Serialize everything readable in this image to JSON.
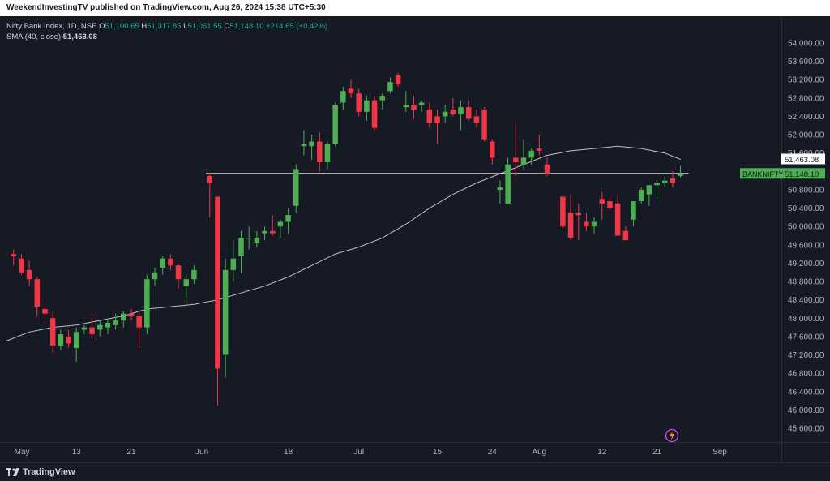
{
  "header": {
    "publisher_line": "WeekendInvestingTV published on TradingView.com, Aug 26, 2024 15:38 UTC+5:30"
  },
  "legend": {
    "symbol": "Nifty Bank Index, 1D, NSE",
    "o_label": "O",
    "o_value": "51,100.65",
    "h_label": "H",
    "h_value": "51,317.85",
    "l_label": "L",
    "l_value": "51,061.55",
    "c_label": "C",
    "c_value": "51,148.10",
    "change": "+214.65 (+0.42%)",
    "sma_label": "SMA (40, close)",
    "sma_value": "51,463.08"
  },
  "footer": {
    "brand": "TradingView"
  },
  "colors": {
    "up": "#4caf50",
    "down": "#f23645",
    "bg": "#161a25",
    "sma": "#d1d4dc",
    "hline": "#ffffff",
    "axis_text": "#b2b5be"
  },
  "chart_data": {
    "type": "candlestick",
    "yaxis": {
      "min": 45500,
      "max": 54200,
      "ticks": [
        "54,000.00",
        "53,600.00",
        "53,200.00",
        "52,800.00",
        "52,400.00",
        "52,000.00",
        "51,600.00",
        "51,200.00",
        "50,800.00",
        "50,400.00",
        "50,000.00",
        "49,600.00",
        "49,200.00",
        "48,800.00",
        "48,400.00",
        "48,000.00",
        "47,600.00",
        "47,200.00",
        "46,800.00",
        "46,400.00",
        "46,000.00",
        "45,600.00"
      ]
    },
    "xaxis": {
      "labels": [
        {
          "text": "May",
          "day": 0
        },
        {
          "text": "13",
          "day": 9
        },
        {
          "text": "21",
          "day": 16
        },
        {
          "text": "Jun",
          "day": 25
        },
        {
          "text": "18",
          "day": 36
        },
        {
          "text": "Jul",
          "day": 45
        },
        {
          "text": "15",
          "day": 55
        },
        {
          "text": "24",
          "day": 62
        },
        {
          "text": "Aug",
          "day": 68
        },
        {
          "text": "12",
          "day": 76
        },
        {
          "text": "21",
          "day": 83
        },
        {
          "text": "Sep",
          "day": 91
        }
      ]
    },
    "candles": [
      {
        "d": 1,
        "o": 49400,
        "h": 49500,
        "l": 49150,
        "c": 49350
      },
      {
        "d": 2,
        "o": 49300,
        "h": 49400,
        "l": 48950,
        "c": 49000
      },
      {
        "d": 3,
        "o": 49050,
        "h": 49250,
        "l": 48700,
        "c": 48850
      },
      {
        "d": 4,
        "o": 48850,
        "h": 48900,
        "l": 48050,
        "c": 48250
      },
      {
        "d": 5,
        "o": 48200,
        "h": 48300,
        "l": 47900,
        "c": 48100
      },
      {
        "d": 6,
        "o": 48000,
        "h": 48150,
        "l": 47250,
        "c": 47400
      },
      {
        "d": 7,
        "o": 47400,
        "h": 47750,
        "l": 47300,
        "c": 47650
      },
      {
        "d": 8,
        "o": 47600,
        "h": 47750,
        "l": 47350,
        "c": 47450
      },
      {
        "d": 9,
        "o": 47350,
        "h": 47800,
        "l": 47050,
        "c": 47700
      },
      {
        "d": 10,
        "o": 47750,
        "h": 47850,
        "l": 47650,
        "c": 47800
      },
      {
        "d": 11,
        "o": 47800,
        "h": 48100,
        "l": 47550,
        "c": 47650
      },
      {
        "d": 12,
        "o": 47750,
        "h": 47950,
        "l": 47600,
        "c": 47850
      },
      {
        "d": 13,
        "o": 47800,
        "h": 48000,
        "l": 47650,
        "c": 47900
      },
      {
        "d": 14,
        "o": 47850,
        "h": 48100,
        "l": 47750,
        "c": 47950
      },
      {
        "d": 15,
        "o": 47950,
        "h": 48150,
        "l": 47800,
        "c": 48100
      },
      {
        "d": 16,
        "o": 48100,
        "h": 48200,
        "l": 47950,
        "c": 48050
      },
      {
        "d": 17,
        "o": 48050,
        "h": 48150,
        "l": 47350,
        "c": 47800
      },
      {
        "d": 18,
        "o": 47800,
        "h": 48950,
        "l": 47650,
        "c": 48850
      },
      {
        "d": 19,
        "o": 48850,
        "h": 49100,
        "l": 48700,
        "c": 49000
      },
      {
        "d": 20,
        "o": 49100,
        "h": 49350,
        "l": 48950,
        "c": 49300
      },
      {
        "d": 21,
        "o": 49300,
        "h": 49400,
        "l": 49050,
        "c": 49150
      },
      {
        "d": 22,
        "o": 49150,
        "h": 49200,
        "l": 48650,
        "c": 48850
      },
      {
        "d": 23,
        "o": 48700,
        "h": 48950,
        "l": 48350,
        "c": 48850
      },
      {
        "d": 24,
        "o": 48850,
        "h": 49150,
        "l": 48750,
        "c": 49050
      },
      {
        "d": 26,
        "o": 51100,
        "h": 51150,
        "l": 50200,
        "c": 50950
      },
      {
        "d": 27,
        "o": 50650,
        "h": 50650,
        "l": 46100,
        "c": 46900
      },
      {
        "d": 28,
        "o": 47200,
        "h": 49300,
        "l": 46700,
        "c": 49050
      },
      {
        "d": 29,
        "o": 49050,
        "h": 49700,
        "l": 48800,
        "c": 49300
      },
      {
        "d": 30,
        "o": 49350,
        "h": 49900,
        "l": 49000,
        "c": 49750
      },
      {
        "d": 31,
        "o": 49750,
        "h": 50000,
        "l": 49500,
        "c": 49750
      },
      {
        "d": 32,
        "o": 49650,
        "h": 49900,
        "l": 49550,
        "c": 49750
      },
      {
        "d": 33,
        "o": 49850,
        "h": 50000,
        "l": 49700,
        "c": 49900
      },
      {
        "d": 34,
        "o": 49900,
        "h": 50250,
        "l": 49800,
        "c": 49850
      },
      {
        "d": 35,
        "o": 50000,
        "h": 50150,
        "l": 49750,
        "c": 50100
      },
      {
        "d": 36,
        "o": 50100,
        "h": 50400,
        "l": 49850,
        "c": 50250
      },
      {
        "d": 37,
        "o": 50450,
        "h": 51350,
        "l": 50300,
        "c": 51250
      },
      {
        "d": 38,
        "o": 51750,
        "h": 52100,
        "l": 51550,
        "c": 51800
      },
      {
        "d": 39,
        "o": 51750,
        "h": 52000,
        "l": 51450,
        "c": 51850
      },
      {
        "d": 40,
        "o": 51850,
        "h": 52050,
        "l": 51200,
        "c": 51400
      },
      {
        "d": 41,
        "o": 51400,
        "h": 51850,
        "l": 51250,
        "c": 51800
      },
      {
        "d": 42,
        "o": 51800,
        "h": 52700,
        "l": 51750,
        "c": 52650
      },
      {
        "d": 43,
        "o": 52700,
        "h": 53050,
        "l": 52550,
        "c": 52950
      },
      {
        "d": 44,
        "o": 53000,
        "h": 53200,
        "l": 52800,
        "c": 52900
      },
      {
        "d": 45,
        "o": 52900,
        "h": 53000,
        "l": 52400,
        "c": 52500
      },
      {
        "d": 46,
        "o": 52500,
        "h": 52850,
        "l": 52300,
        "c": 52750
      },
      {
        "d": 47,
        "o": 52750,
        "h": 52850,
        "l": 52100,
        "c": 52150
      },
      {
        "d": 48,
        "o": 52750,
        "h": 52900,
        "l": 52550,
        "c": 52850
      },
      {
        "d": 49,
        "o": 52950,
        "h": 53250,
        "l": 52900,
        "c": 53150
      },
      {
        "d": 50,
        "o": 53300,
        "h": 53350,
        "l": 53050,
        "c": 53100
      },
      {
        "d": 51,
        "o": 52600,
        "h": 52950,
        "l": 52500,
        "c": 52650
      },
      {
        "d": 52,
        "o": 52650,
        "h": 52850,
        "l": 52350,
        "c": 52550
      },
      {
        "d": 53,
        "o": 52650,
        "h": 52750,
        "l": 52500,
        "c": 52700
      },
      {
        "d": 54,
        "o": 52550,
        "h": 52700,
        "l": 52150,
        "c": 52250
      },
      {
        "d": 55,
        "o": 52400,
        "h": 52550,
        "l": 51800,
        "c": 52250
      },
      {
        "d": 56,
        "o": 52400,
        "h": 52650,
        "l": 52250,
        "c": 52500
      },
      {
        "d": 57,
        "o": 52550,
        "h": 52800,
        "l": 52400,
        "c": 52450
      },
      {
        "d": 58,
        "o": 52450,
        "h": 52750,
        "l": 52100,
        "c": 52600
      },
      {
        "d": 59,
        "o": 52600,
        "h": 52750,
        "l": 52300,
        "c": 52350
      },
      {
        "d": 60,
        "o": 52400,
        "h": 52550,
        "l": 52150,
        "c": 52250
      },
      {
        "d": 61,
        "o": 52550,
        "h": 52600,
        "l": 51850,
        "c": 51900
      },
      {
        "d": 62,
        "o": 51850,
        "h": 51900,
        "l": 51350,
        "c": 51500
      },
      {
        "d": 63,
        "o": 50800,
        "h": 51000,
        "l": 50500,
        "c": 50850
      },
      {
        "d": 64,
        "o": 50500,
        "h": 51500,
        "l": 50500,
        "c": 51350
      },
      {
        "d": 65,
        "o": 51500,
        "h": 52250,
        "l": 51100,
        "c": 51400
      },
      {
        "d": 66,
        "o": 51350,
        "h": 51900,
        "l": 51250,
        "c": 51500
      },
      {
        "d": 67,
        "o": 51500,
        "h": 51700,
        "l": 51350,
        "c": 51650
      },
      {
        "d": 68,
        "o": 51700,
        "h": 52000,
        "l": 51550,
        "c": 51650
      },
      {
        "d": 69,
        "o": 51350,
        "h": 51500,
        "l": 51100,
        "c": 51150
      },
      {
        "d": 71,
        "o": 50650,
        "h": 50700,
        "l": 49950,
        "c": 50000
      },
      {
        "d": 72,
        "o": 50300,
        "h": 50700,
        "l": 49700,
        "c": 49750
      },
      {
        "d": 73,
        "o": 50300,
        "h": 50500,
        "l": 49700,
        "c": 50250
      },
      {
        "d": 74,
        "o": 50100,
        "h": 50300,
        "l": 49900,
        "c": 50000
      },
      {
        "d": 75,
        "o": 50000,
        "h": 50200,
        "l": 49850,
        "c": 50100
      },
      {
        "d": 76,
        "o": 50600,
        "h": 50750,
        "l": 50150,
        "c": 50500
      },
      {
        "d": 77,
        "o": 50550,
        "h": 50650,
        "l": 50350,
        "c": 50400
      },
      {
        "d": 78,
        "o": 50500,
        "h": 50700,
        "l": 49800,
        "c": 49800
      },
      {
        "d": 79,
        "o": 49900,
        "h": 50000,
        "l": 49700,
        "c": 49700
      },
      {
        "d": 80,
        "o": 50150,
        "h": 50550,
        "l": 50000,
        "c": 50550
      },
      {
        "d": 81,
        "o": 50550,
        "h": 50850,
        "l": 50500,
        "c": 50800
      },
      {
        "d": 82,
        "o": 50700,
        "h": 50850,
        "l": 50450,
        "c": 50900
      },
      {
        "d": 83,
        "o": 50900,
        "h": 51000,
        "l": 50600,
        "c": 50950
      },
      {
        "d": 84,
        "o": 50950,
        "h": 51100,
        "l": 50850,
        "c": 51000
      },
      {
        "d": 85,
        "o": 51050,
        "h": 51200,
        "l": 50850,
        "c": 50950
      },
      {
        "d": 86,
        "o": 51100,
        "h": 51320,
        "l": 51060,
        "c": 51148
      }
    ],
    "sma": {
      "name": "SMA (40, close)",
      "points": [
        [
          0,
          47500
        ],
        [
          3,
          47700
        ],
        [
          6,
          47800
        ],
        [
          9,
          47850
        ],
        [
          12,
          47950
        ],
        [
          15,
          48050
        ],
        [
          18,
          48200
        ],
        [
          21,
          48250
        ],
        [
          24,
          48300
        ],
        [
          27,
          48400
        ],
        [
          30,
          48550
        ],
        [
          33,
          48700
        ],
        [
          36,
          48900
        ],
        [
          39,
          49150
        ],
        [
          42,
          49400
        ],
        [
          45,
          49550
        ],
        [
          48,
          49750
        ],
        [
          51,
          50050
        ],
        [
          54,
          50400
        ],
        [
          57,
          50700
        ],
        [
          60,
          50950
        ],
        [
          63,
          51150
        ],
        [
          66,
          51350
        ],
        [
          69,
          51550
        ],
        [
          72,
          51650
        ],
        [
          75,
          51700
        ],
        [
          78,
          51750
        ],
        [
          81,
          51700
        ],
        [
          84,
          51600
        ],
        [
          86,
          51463
        ]
      ]
    },
    "hline": {
      "value": 51150
    },
    "last_price": {
      "symbol": "BANKNIFTY",
      "value": "51,148.10"
    },
    "sma_last": {
      "value": "51,463.08"
    }
  }
}
